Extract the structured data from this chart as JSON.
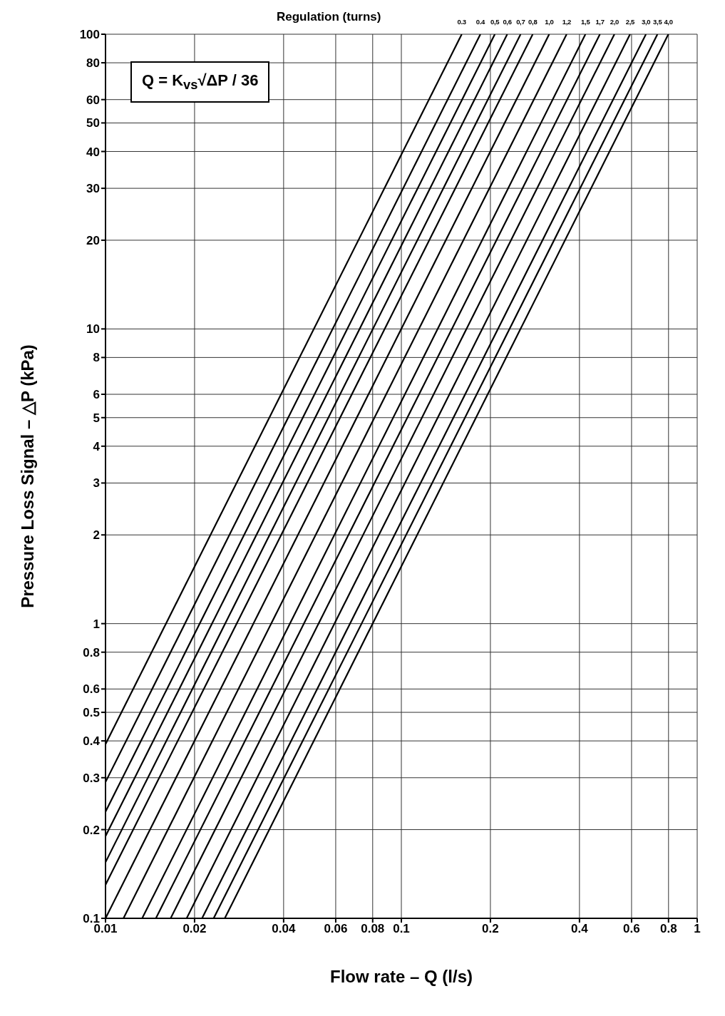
{
  "chart_data": {
    "type": "line",
    "legend_title": "Regulation (turns)",
    "xlabel": "Flow rate – Q (l/s)",
    "ylabel": "Pressure Loss Signal – △P (kPa)",
    "annotations": [
      "Q = K$_{vs}$√ΔP / 36"
    ],
    "series": [
      {
        "name": "0.3",
        "color": "#000000",
        "x": [
          0.01,
          0.16
        ],
        "values": [
          0.39,
          100
        ]
      },
      {
        "name": "0.4",
        "color": "#000000",
        "x": [
          0.01,
          0.185
        ],
        "values": [
          0.29,
          100
        ]
      },
      {
        "name": "0,5",
        "color": "#000000",
        "x": [
          0.01,
          0.207
        ],
        "values": [
          0.23,
          100
        ]
      },
      {
        "name": "0,6",
        "color": "#000000",
        "x": [
          0.01,
          0.228
        ],
        "values": [
          0.19,
          100
        ]
      },
      {
        "name": "0,7",
        "color": "#000000",
        "x": [
          0.01,
          0.253
        ],
        "values": [
          0.155,
          100
        ]
      },
      {
        "name": "0,8",
        "color": "#000000",
        "x": [
          0.01,
          0.278
        ],
        "values": [
          0.13,
          100
        ]
      },
      {
        "name": "1,0",
        "color": "#000000",
        "x": [
          0.01,
          0.316
        ],
        "values": [
          0.1,
          100
        ]
      },
      {
        "name": "1,2",
        "color": "#000000",
        "x": [
          0.0115,
          0.362
        ],
        "values": [
          0.1,
          100
        ]
      },
      {
        "name": "1,5",
        "color": "#000000",
        "x": [
          0.0133,
          0.419
        ],
        "values": [
          0.1,
          100
        ]
      },
      {
        "name": "1,7",
        "color": "#000000",
        "x": [
          0.0148,
          0.469
        ],
        "values": [
          0.1,
          100
        ]
      },
      {
        "name": "2,0",
        "color": "#000000",
        "x": [
          0.0166,
          0.525
        ],
        "values": [
          0.1,
          100
        ]
      },
      {
        "name": "2,5",
        "color": "#000000",
        "x": [
          0.0188,
          0.593
        ],
        "values": [
          0.1,
          100
        ]
      },
      {
        "name": "3,0",
        "color": "#000000",
        "x": [
          0.0212,
          0.671
        ],
        "values": [
          0.1,
          100
        ]
      },
      {
        "name": "3,5",
        "color": "#000000",
        "x": [
          0.0232,
          0.734
        ],
        "values": [
          0.1,
          100
        ]
      },
      {
        "name": "4,0",
        "color": "#000000",
        "x": [
          0.0253,
          0.799
        ],
        "values": [
          0.1,
          100
        ]
      }
    ],
    "xlim": [
      0.01,
      1
    ],
    "xticks": [
      0.01,
      0.02,
      0.04,
      0.06,
      0.08,
      0.1,
      0.2,
      0.4,
      0.6,
      0.8,
      1
    ],
    "ylim": [
      0.1,
      100
    ],
    "yticks": [
      0.1,
      0.2,
      0.3,
      0.4,
      0.5,
      0.6,
      0.8,
      1,
      2,
      3,
      4,
      5,
      6,
      8,
      10,
      20,
      30,
      40,
      50,
      60,
      80,
      100
    ],
    "log": "xy",
    "grid": true,
    "marker": "none",
    "line_style": "solid"
  }
}
